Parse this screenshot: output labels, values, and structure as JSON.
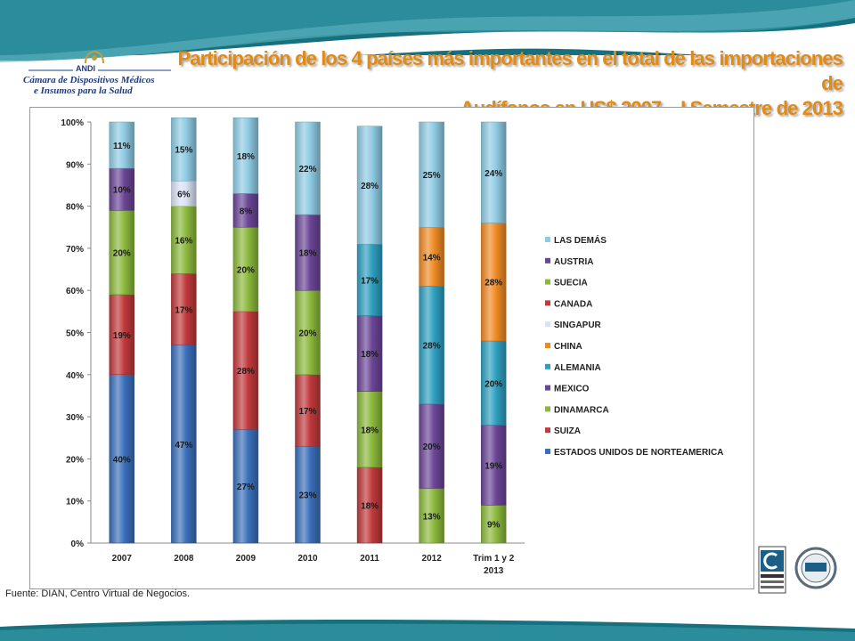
{
  "header": {
    "title_line1": "Participación de los 4 países más importantes en el total de las importaciones de",
    "title_line2": "Audífonos en US$  2007 – I Semestre de 2013"
  },
  "logo": {
    "name": "ANDI",
    "line1": "Cámara de Dispositivos Médicos",
    "line2": "e Insumos para la Salud"
  },
  "source": "Fuente: DIAN, Centro Virtual de Negocios.",
  "colors": {
    "ESTADOS UNIDOS DE NORTEAMERICA": "#3a6fba",
    "SUIZA": "#c0393b",
    "DINAMARCA": "#8bb83c",
    "MEXICO": "#6b4596",
    "ALEMANIA": "#2e9fbf",
    "CHINA": "#ef8a24",
    "SINGAPUR": "#d9e2f5",
    "CANADA": "#c0393b",
    "SUECIA": "#8bb83c",
    "AUSTRIA": "#6b4596",
    "LAS DEMÁS": "#8fcbe3"
  },
  "chart_data": {
    "type": "bar",
    "stacked": true,
    "categories": [
      "2007",
      "2008",
      "2009",
      "2010",
      "2011",
      "2012",
      "Trim 1 y 2|2013"
    ],
    "ylim": [
      0,
      100
    ],
    "yticks": [
      "0%",
      "10%",
      "20%",
      "30%",
      "40%",
      "50%",
      "60%",
      "70%",
      "80%",
      "90%",
      "100%"
    ],
    "legend_position": "right",
    "legend": [
      "LAS DEMÁS",
      "AUSTRIA",
      "SUECIA",
      "CANADA",
      "SINGAPUR",
      "CHINA",
      "ALEMANIA",
      "MEXICO",
      "DINAMARCA",
      "SUIZA",
      "ESTADOS UNIDOS DE NORTEAMERICA"
    ],
    "stacks": [
      [
        {
          "series": "ESTADOS UNIDOS DE NORTEAMERICA",
          "value": 40,
          "label": "40%"
        },
        {
          "series": "SUIZA",
          "value": 19,
          "label": "19%"
        },
        {
          "series": "DINAMARCA",
          "value": 20,
          "label": "20%"
        },
        {
          "series": "AUSTRIA",
          "value": 10,
          "label": "10%"
        },
        {
          "series": "LAS DEMÁS",
          "value": 11,
          "label": "11%"
        }
      ],
      [
        {
          "series": "ESTADOS UNIDOS DE NORTEAMERICA",
          "value": 47,
          "label": "47%"
        },
        {
          "series": "SUIZA",
          "value": 17,
          "label": "17%"
        },
        {
          "series": "DINAMARCA",
          "value": 16,
          "label": "16%"
        },
        {
          "series": "SINGAPUR",
          "value": 6,
          "label": "6%"
        },
        {
          "series": "LAS DEMÁS",
          "value": 15,
          "label": "15%"
        }
      ],
      [
        {
          "series": "ESTADOS UNIDOS DE NORTEAMERICA",
          "value": 27,
          "label": "27%"
        },
        {
          "series": "SUIZA",
          "value": 28,
          "label": "28%"
        },
        {
          "series": "DINAMARCA",
          "value": 20,
          "label": "20%"
        },
        {
          "series": "MEXICO",
          "value": 8,
          "label": "8%"
        },
        {
          "series": "LAS DEMÁS",
          "value": 18,
          "label": "18%"
        }
      ],
      [
        {
          "series": "ESTADOS UNIDOS DE NORTEAMERICA",
          "value": 23,
          "label": "23%"
        },
        {
          "series": "SUIZA",
          "value": 17,
          "label": "17%"
        },
        {
          "series": "DINAMARCA",
          "value": 20,
          "label": "20%"
        },
        {
          "series": "MEXICO",
          "value": 18,
          "label": "18%"
        },
        {
          "series": "LAS DEMÁS",
          "value": 22,
          "label": "22%"
        }
      ],
      [
        {
          "series": "SUIZA",
          "value": 18,
          "label": "18%"
        },
        {
          "series": "DINAMARCA",
          "value": 18,
          "label": "18%"
        },
        {
          "series": "MEXICO",
          "value": 18,
          "label": "18%"
        },
        {
          "series": "ALEMANIA",
          "value": 17,
          "label": "17%"
        },
        {
          "series": "LAS DEMÁS",
          "value": 28,
          "label": "28%"
        }
      ],
      [
        {
          "series": "DINAMARCA",
          "value": 13,
          "label": "13%"
        },
        {
          "series": "MEXICO",
          "value": 20,
          "label": "20%"
        },
        {
          "series": "ALEMANIA",
          "value": 28,
          "label": "28%"
        },
        {
          "series": "CHINA",
          "value": 14,
          "label": "14%"
        },
        {
          "series": "LAS DEMÁS",
          "value": 25,
          "label": "25%"
        }
      ],
      [
        {
          "series": "DINAMARCA",
          "value": 9,
          "label": "9%"
        },
        {
          "series": "MEXICO",
          "value": 19,
          "label": "19%"
        },
        {
          "series": "ALEMANIA",
          "value": 20,
          "label": "20%"
        },
        {
          "series": "CHINA",
          "value": 28,
          "label": "28%"
        },
        {
          "series": "LAS DEMÁS",
          "value": 24,
          "label": "24%"
        }
      ]
    ]
  }
}
